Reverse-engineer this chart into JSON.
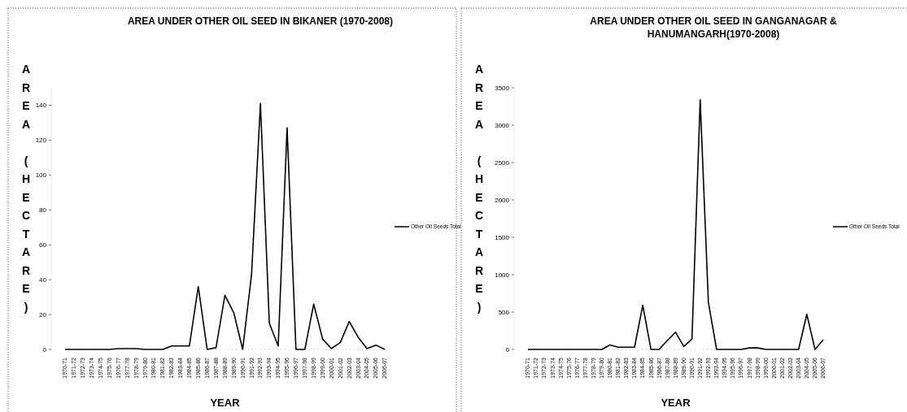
{
  "chart_data": [
    {
      "type": "line",
      "title": "AREA UNDER OTHER OIL SEED IN BIKANER (1970-2008)",
      "xlabel": "YEAR",
      "ylabel": "AREA (HECTARE)",
      "categories": [
        "1970-71",
        "1971-72",
        "1972-73",
        "1973-74",
        "1974-75",
        "1975-76",
        "1976-77",
        "1977-78",
        "1978-79",
        "1979-80",
        "1980-81",
        "1981-82",
        "1982-83",
        "1983-84",
        "1984-85",
        "1985-86",
        "1986-87",
        "1987-88",
        "1988-89",
        "1989-90",
        "1990-91",
        "1991-92",
        "1992-93",
        "1993-94",
        "1994-95",
        "1995-96",
        "1996-97",
        "1997-98",
        "1998-99",
        "1999-00",
        "2000-01",
        "2001-02",
        "2002-03",
        "2003-04",
        "2004-05",
        "2005-06",
        "2006-07"
      ],
      "series": [
        {
          "name": "Other Oil Seeds Total",
          "color": "#000000",
          "values": [
            0,
            0,
            0,
            0,
            0,
            0,
            0.5,
            0.5,
            0.5,
            0,
            0,
            0,
            2,
            2,
            2,
            36,
            0,
            1,
            31,
            21,
            0,
            43,
            141,
            15,
            2,
            127,
            0,
            0,
            26,
            6,
            0.5,
            4,
            16,
            7,
            0.5,
            2.5,
            0
          ]
        }
      ],
      "ylim": [
        0,
        150
      ],
      "yticks": [
        0,
        20,
        40,
        60,
        80,
        100,
        120,
        140
      ],
      "legend": "right",
      "marker": "none",
      "grid": false
    },
    {
      "type": "line",
      "title": "AREA UNDER OTHER OIL SEED IN GANGANAGAR & HANUMANGARH(1970-2008)",
      "xlabel": "YEAR",
      "ylabel": "AREA (HECTARE)",
      "categories": [
        "1970-71",
        "1971-72",
        "1972-73",
        "1973-74",
        "1974-75",
        "1975-76",
        "1976-77",
        "1977-78",
        "1978-79",
        "1979-80",
        "1980-81",
        "1981-82",
        "1982-83",
        "1983-84",
        "1984-85",
        "1985-86",
        "1986-87",
        "1987-88",
        "1988-89",
        "1989-90",
        "1990-91",
        "1991-92",
        "1992-93",
        "1993-94",
        "1994-95",
        "1995-96",
        "1996-97",
        "1997-98",
        "1998-99",
        "1999-00",
        "2000-01",
        "2001-02",
        "2002-03",
        "2003-04",
        "2004-05",
        "2005-06",
        "2006-07"
      ],
      "series": [
        {
          "name": "Other Oil Seeds Total",
          "color": "#000000",
          "values": [
            0,
            0,
            0,
            0,
            0,
            0,
            0,
            0,
            0,
            0,
            60,
            30,
            30,
            30,
            590,
            0,
            0,
            120,
            230,
            40,
            140,
            3340,
            630,
            0,
            0,
            0,
            0,
            20,
            20,
            0,
            0,
            0,
            0,
            0,
            470,
            0,
            130
          ]
        }
      ],
      "ylim": [
        0,
        3500
      ],
      "yticks": [
        0,
        500,
        1000,
        1500,
        2000,
        2500,
        3000,
        3500
      ],
      "legend": "right",
      "marker": "none",
      "grid": false
    }
  ]
}
